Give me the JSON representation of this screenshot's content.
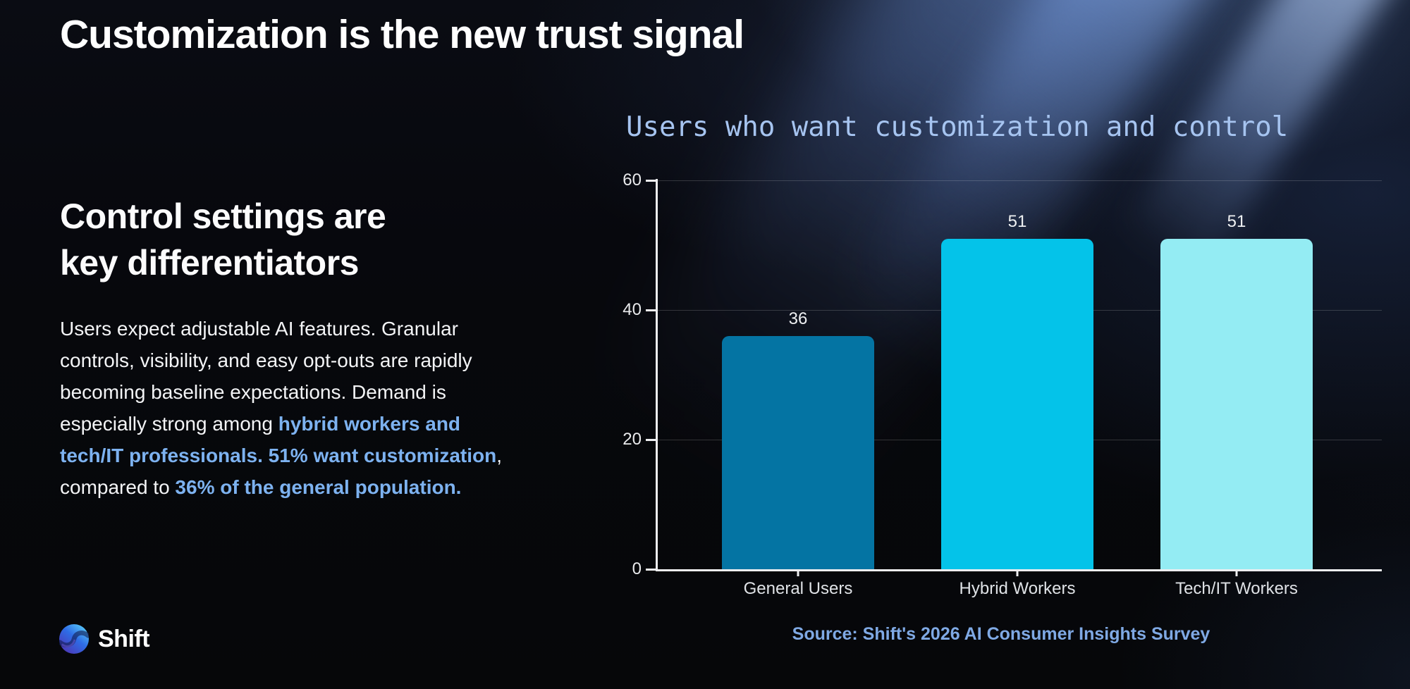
{
  "title": "Customization is the new trust signal",
  "left": {
    "heading": "Control settings are\nkey differentiators",
    "body_segments": [
      {
        "text": "Users expect adjustable AI features. Granular controls, visibility, and easy opt-outs are rapidly becoming baseline expectations. Demand is especially strong among ",
        "highlight": false
      },
      {
        "text": "hybrid workers and tech/IT professionals. 51% want customization",
        "highlight": true
      },
      {
        "text": ", compared to ",
        "highlight": false
      },
      {
        "text": "36% of the general population.",
        "highlight": true
      }
    ]
  },
  "logo": {
    "text": "Shift",
    "icon": "shift-sphere-icon"
  },
  "chart": {
    "title": "Users who want customization and control",
    "source": "Source: Shift's 2026 AI Consumer Insights Survey"
  },
  "chart_data": {
    "type": "bar",
    "title": "Users who want customization and control",
    "categories": [
      "General Users",
      "Hybrid Workers",
      "Tech/IT Workers"
    ],
    "values": [
      36,
      51,
      51
    ],
    "bar_colors": [
      "#0474a3",
      "#04c3e9",
      "#94ecf3"
    ],
    "value_labels": [
      36,
      51,
      51
    ],
    "xlabel": "",
    "ylabel": "",
    "ylim": [
      0,
      60
    ],
    "yticks": [
      0,
      20,
      40,
      60
    ],
    "grid": true,
    "legend": false,
    "source": "Source: Shift's 2026 AI Consumer Insights Survey"
  },
  "colors": {
    "highlight_blue": "#7db2f0",
    "chart_title_blue": "#a6c4f0",
    "source_blue": "#7fa9e4",
    "background": "#07080d"
  }
}
